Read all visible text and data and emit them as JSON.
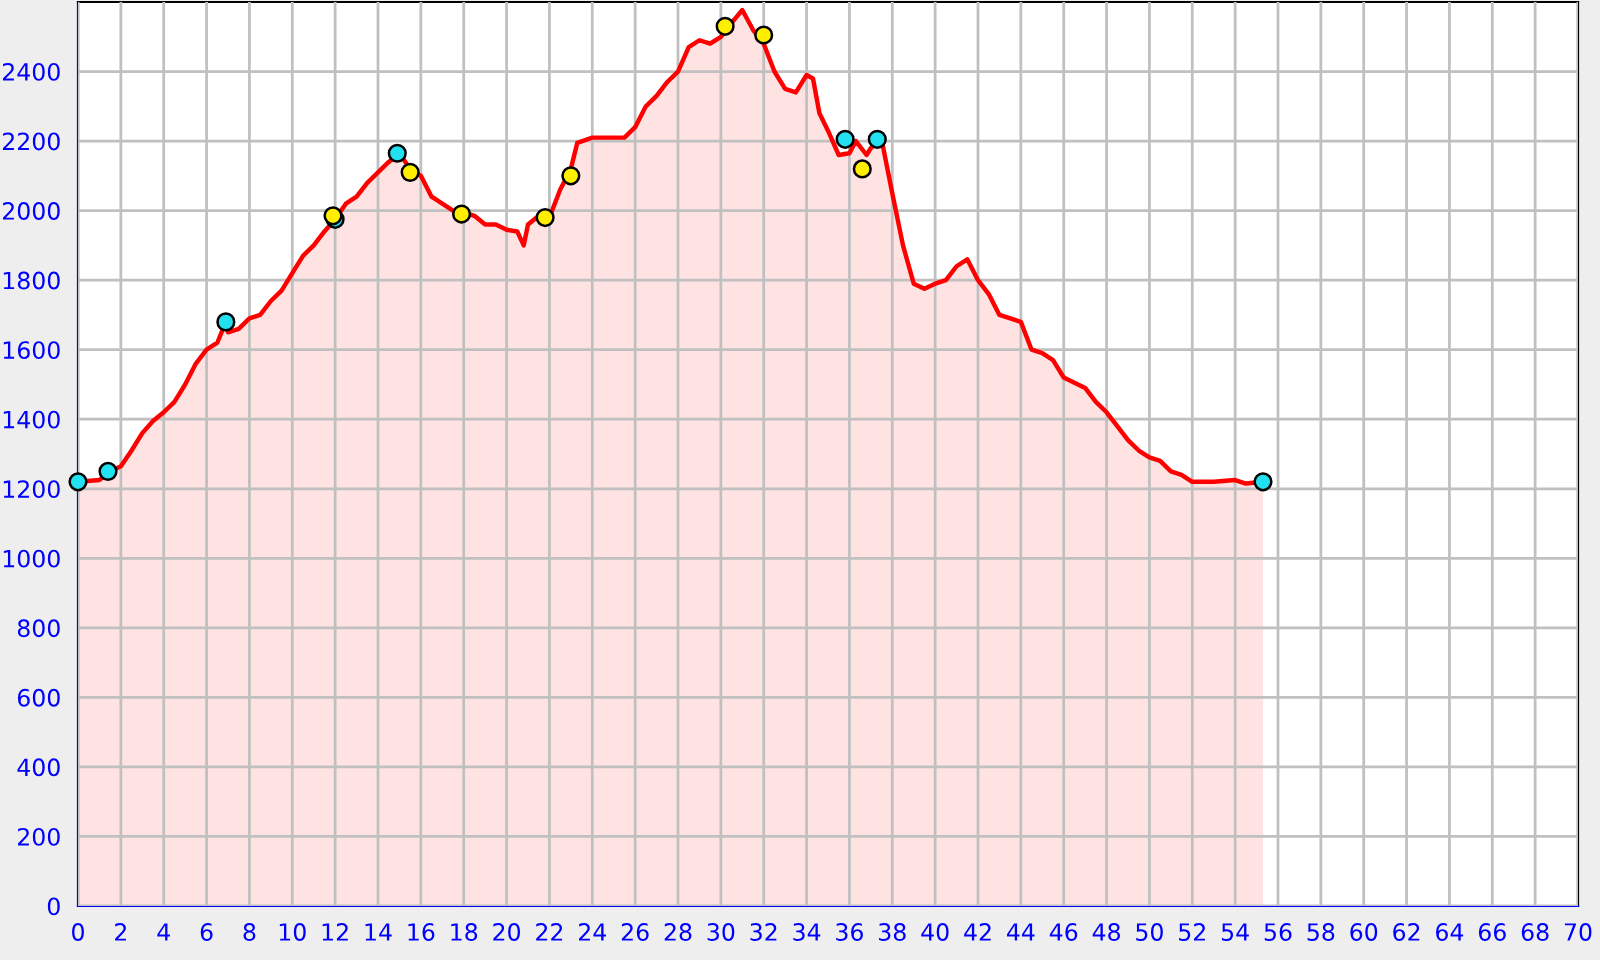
{
  "chart_data": {
    "type": "area",
    "xlim": [
      0,
      70
    ],
    "ylim": [
      0,
      2600
    ],
    "xticks": [
      0,
      2,
      4,
      6,
      8,
      10,
      12,
      14,
      16,
      18,
      20,
      22,
      24,
      26,
      28,
      30,
      32,
      34,
      36,
      38,
      40,
      42,
      44,
      46,
      48,
      50,
      52,
      54,
      56,
      58,
      60,
      62,
      64,
      66,
      68,
      70
    ],
    "yticks": [
      0,
      200,
      400,
      600,
      800,
      1000,
      1200,
      1400,
      1600,
      1800,
      2000,
      2200,
      2400
    ],
    "grid": true,
    "legend": false,
    "series": [
      {
        "color": "#ff0000",
        "x": [
          0,
          1,
          1.5,
          2,
          2.5,
          3,
          3.5,
          4,
          4.5,
          5,
          5.5,
          6,
          6.5,
          6.9,
          7,
          7.5,
          8,
          8.5,
          9,
          9.5,
          10,
          10.5,
          11,
          11.5,
          12,
          12.5,
          13,
          13.5,
          14,
          14.5,
          15,
          15.5,
          16,
          16.5,
          17,
          17.5,
          18,
          18.5,
          19,
          19.5,
          20,
          20.5,
          20.8,
          21,
          21.5,
          22,
          22.5,
          23,
          23.3,
          24,
          25,
          25.5,
          26,
          26.5,
          27,
          27.5,
          28,
          28.5,
          29,
          29.5,
          30,
          30.5,
          31,
          31.5,
          32,
          32.5,
          33,
          33.5,
          34,
          34.3,
          34.6,
          35,
          35.5,
          36,
          36.3,
          36.8,
          37,
          37.5,
          38,
          38.5,
          39,
          39.5,
          40,
          40.5,
          41,
          41.5,
          42,
          42.5,
          43,
          44,
          44.5,
          45,
          45.5,
          46,
          47,
          47.5,
          48,
          48.5,
          49,
          49.5,
          50,
          50.5,
          51,
          51.5,
          52,
          53,
          54,
          54.5,
          55.3
        ],
        "values": [
          1220,
          1225,
          1250,
          1265,
          1310,
          1360,
          1395,
          1420,
          1450,
          1500,
          1560,
          1600,
          1620,
          1680,
          1650,
          1660,
          1690,
          1700,
          1740,
          1770,
          1820,
          1870,
          1900,
          1940,
          1975,
          2020,
          2040,
          2080,
          2110,
          2140,
          2165,
          2120,
          2100,
          2040,
          2020,
          2000,
          1995,
          1985,
          1960,
          1960,
          1945,
          1940,
          1900,
          1960,
          1985,
          1980,
          2060,
          2120,
          2195,
          2210,
          2210,
          2210,
          2240,
          2300,
          2330,
          2370,
          2400,
          2470,
          2490,
          2480,
          2500,
          2540,
          2577,
          2520,
          2480,
          2400,
          2350,
          2340,
          2390,
          2380,
          2280,
          2230,
          2160,
          2165,
          2200,
          2160,
          2180,
          2205,
          2050,
          1900,
          1790,
          1775,
          1790,
          1800,
          1840,
          1860,
          1800,
          1760,
          1700,
          1680,
          1600,
          1590,
          1570,
          1520,
          1490,
          1450,
          1420,
          1380,
          1340,
          1310,
          1290,
          1280,
          1250,
          1240,
          1220,
          1220,
          1225,
          1215,
          1220
        ]
      },
      {
        "type": "scatter",
        "color": "#22e0f0",
        "x": [
          0,
          1.4,
          6.9,
          12,
          14.9,
          35.8,
          37.3,
          55.3
        ],
        "values": [
          1220,
          1250,
          1680,
          1975,
          2165,
          2205,
          2205,
          1220
        ]
      },
      {
        "type": "scatter",
        "color": "#ffee00",
        "x": [
          11.9,
          15.5,
          17.9,
          21.8,
          23,
          30.2,
          32,
          36.6
        ],
        "values": [
          1985,
          2110,
          1990,
          1980,
          2100,
          2530,
          2505,
          2120
        ]
      }
    ]
  }
}
